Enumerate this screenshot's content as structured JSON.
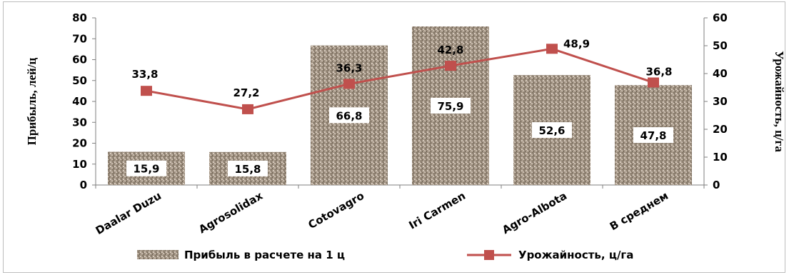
{
  "chart_data": {
    "type": "bar+line",
    "categories": [
      "Daalar Duzu",
      "Agrosolidax",
      "Cotovagro",
      "Iri Carmen",
      "Agro-Albota",
      "В среднем"
    ],
    "series": [
      {
        "name": "Прибыль в расчете на 1 ц",
        "type": "bar",
        "axis": "left",
        "values": [
          15.9,
          15.8,
          66.8,
          75.9,
          52.6,
          47.8
        ],
        "labels": [
          "15,9",
          "15,8",
          "66,8",
          "75,9",
          "52,6",
          "47,8"
        ],
        "color": "#a39484"
      },
      {
        "name": "Урожайность, ц/га",
        "type": "line",
        "axis": "right",
        "values": [
          33.8,
          27.2,
          36.3,
          42.8,
          48.9,
          36.8
        ],
        "labels": [
          "33,8",
          "27,2",
          "36,3",
          "42,8",
          "48,9",
          "36,8"
        ],
        "color": "#c0504d"
      }
    ],
    "y_left": {
      "label": "Прибыль, лей/ц",
      "ylim": [
        0,
        80
      ],
      "ticks": [
        "0",
        "10",
        "20",
        "30",
        "40",
        "50",
        "60",
        "70",
        "80"
      ]
    },
    "y_right": {
      "label": "Урожайность, ц/га",
      "ylim": [
        0,
        60
      ],
      "ticks": [
        "0",
        "10",
        "20",
        "30",
        "40",
        "50",
        "60"
      ]
    },
    "grid": false,
    "legend": "bottom"
  }
}
